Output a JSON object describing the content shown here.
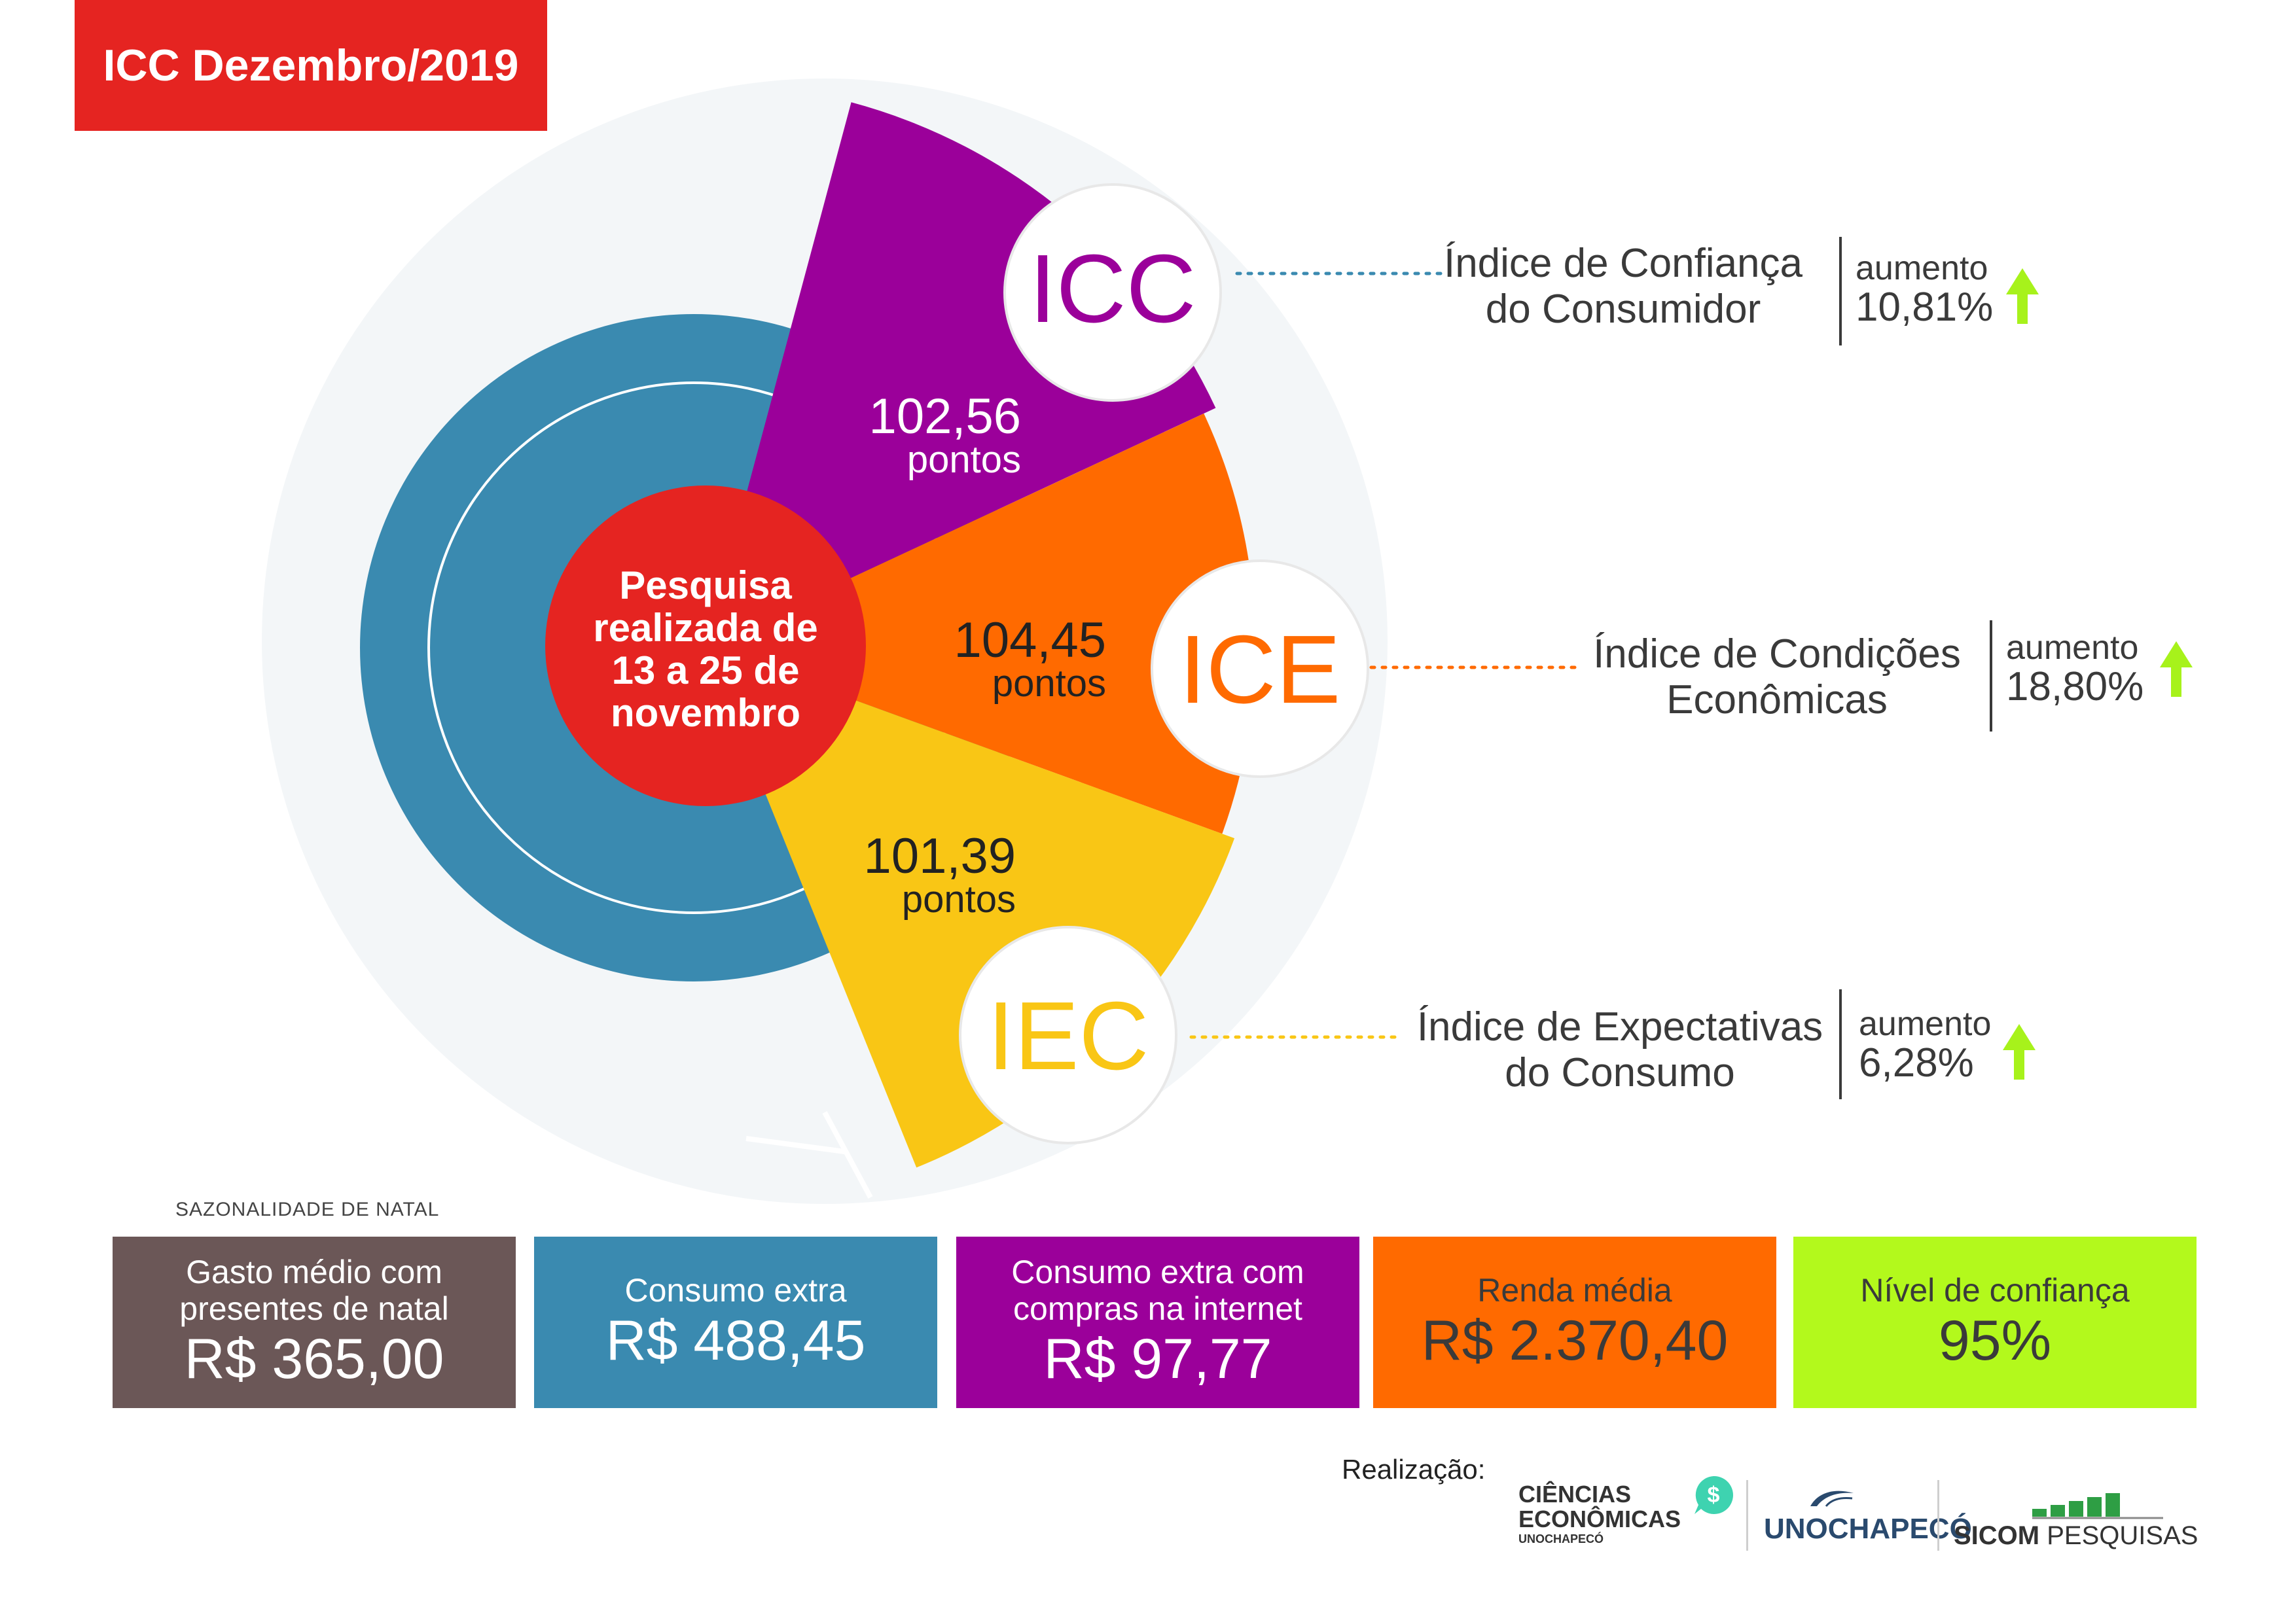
{
  "header": {
    "title": "ICC Dezembro/2019"
  },
  "center_circle": {
    "lines": [
      "Pesquisa",
      "realizada de",
      "13 a 25 de",
      "novembro"
    ]
  },
  "indices": [
    {
      "code": "ICC",
      "value": "102,56",
      "unit": "pontos",
      "name_lines": [
        "Índice de Confiança",
        "do Consumidor"
      ],
      "change_label": "aumento",
      "change_pct": "10,81%",
      "color": "#9b009a",
      "text_color": "#9b009a"
    },
    {
      "code": "ICE",
      "value": "104,45",
      "unit": "pontos",
      "name_lines": [
        "Índice de Condições",
        "Econômicas"
      ],
      "change_label": "aumento",
      "change_pct": "18,80%",
      "color": "#ff6a00",
      "text_color": "#ff6a00"
    },
    {
      "code": "IEC",
      "value": "101,39",
      "unit": "pontos",
      "name_lines": [
        "Índice de Expectativas",
        "do Consumo"
      ],
      "change_label": "aumento",
      "change_pct": "6,28%",
      "color": "#f9c615",
      "text_color": "#f9c615"
    }
  ],
  "seasonality": {
    "section_label": "SAZONALIDADE DE NATAL",
    "boxes": [
      {
        "label_lines": [
          "Gasto médio com",
          "presentes de natal"
        ],
        "value": "R$ 365,00",
        "color": "#6b5757"
      },
      {
        "label_lines": [
          "Consumo extra"
        ],
        "value": "R$ 488,45",
        "color": "#3a8ab0"
      },
      {
        "label_lines": [
          "Consumo extra com",
          "compras na internet"
        ],
        "value": "R$ 97,77",
        "color": "#9b009a"
      },
      {
        "label_lines": [
          "Renda média"
        ],
        "value": "R$ 2.370,40",
        "color": "#ff6a00"
      },
      {
        "label_lines": [
          "Nível de confiança"
        ],
        "value": "95%",
        "color": "#b3f91c"
      }
    ]
  },
  "footer": {
    "credit_label": "Realização:",
    "logos": [
      {
        "lines": [
          "CIÊNCIAS",
          "ECONÔMICAS",
          "UNOCHAPECÓ"
        ],
        "icon": "dollar-bubble-icon"
      },
      {
        "lines": [
          "UNOCHAPECÓ"
        ],
        "icon": "swoosh-icon"
      },
      {
        "lines": [
          "SICOM",
          "PESQUISAS"
        ],
        "icon": "bar-chart-icon"
      }
    ]
  },
  "colors": {
    "title_red": "#e52421",
    "blue": "#3a8ab0",
    "purple": "#9b009a",
    "orange": "#ff6a00",
    "yellow": "#f9c615",
    "green_arrow": "#a7f21b",
    "teal": "#3ed3b0"
  }
}
